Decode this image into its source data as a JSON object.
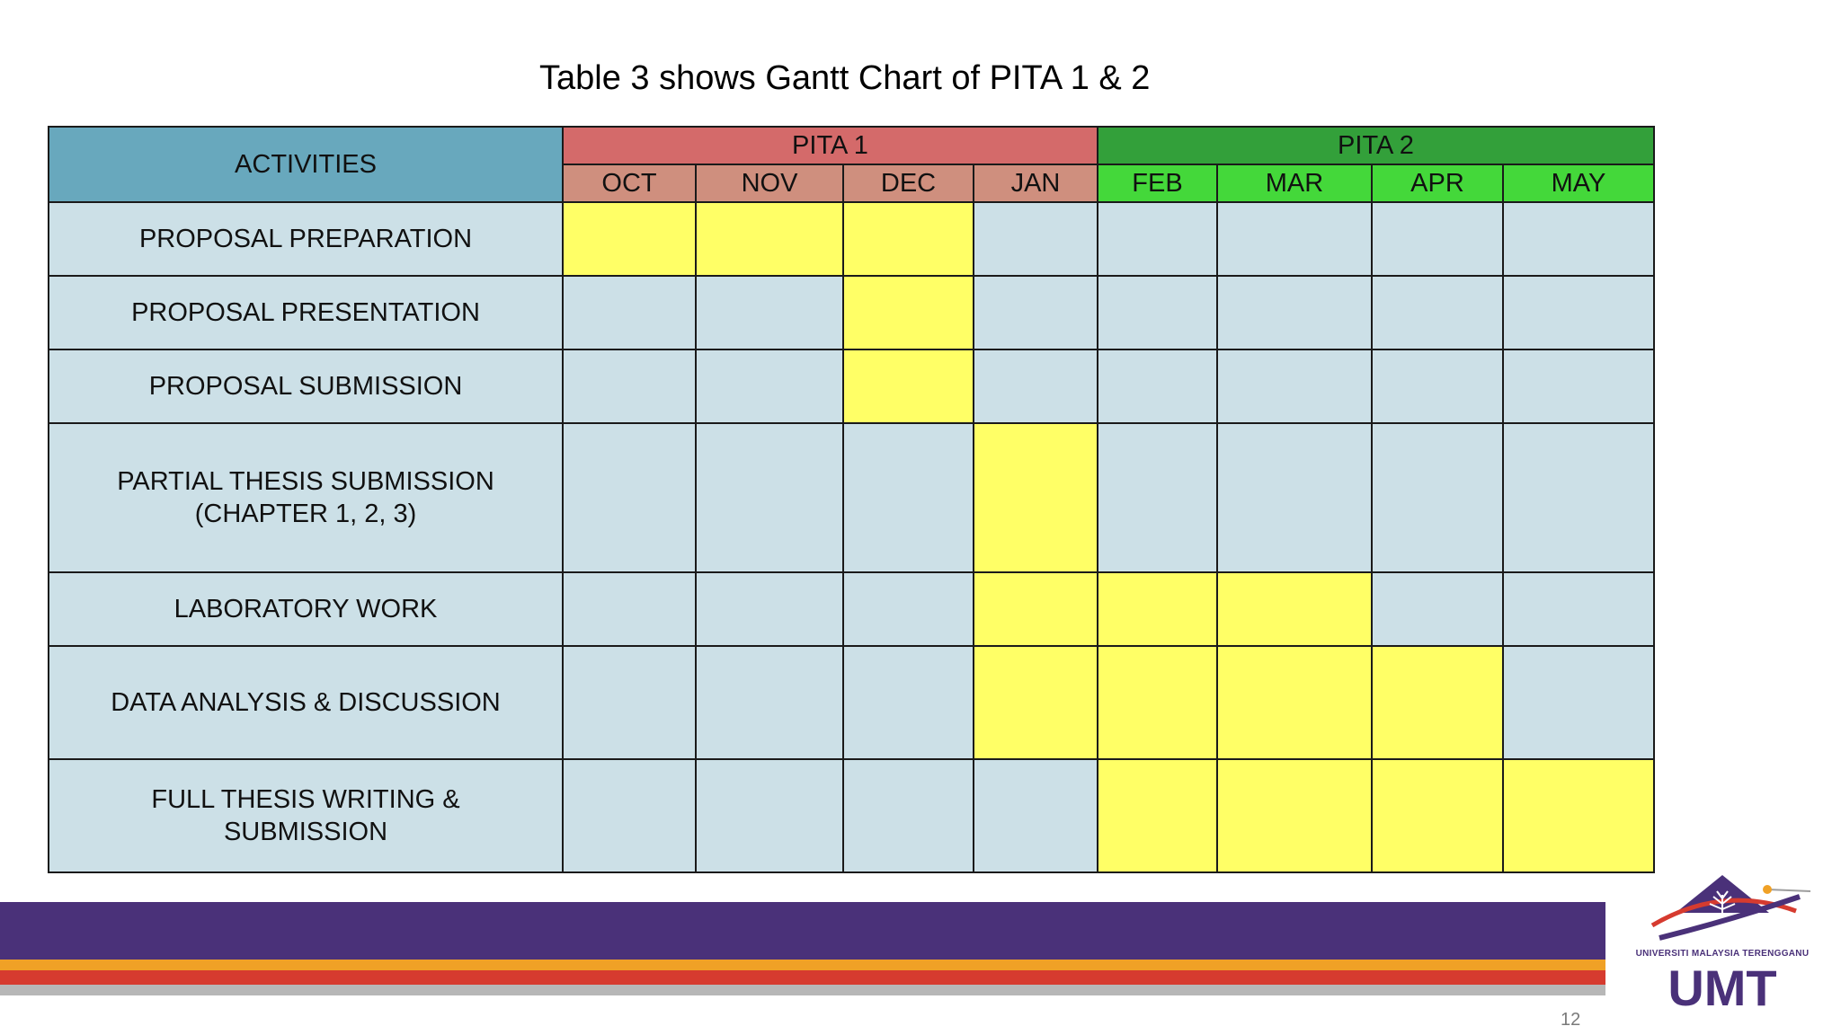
{
  "title": "Table 3 shows Gantt Chart of PITA 1 & 2",
  "table": {
    "activities_header": "ACTIVITIES",
    "phases": [
      {
        "label": "PITA 1",
        "months": [
          "OCT",
          "NOV",
          "DEC",
          "JAN"
        ]
      },
      {
        "label": "PITA 2",
        "months": [
          "FEB",
          "MAR",
          "APR",
          "MAY"
        ]
      }
    ],
    "rows": [
      {
        "lines": [
          "PROPOSAL PREPARATION"
        ],
        "active": [
          1,
          1,
          1,
          0,
          0,
          0,
          0,
          0
        ]
      },
      {
        "lines": [
          "PROPOSAL PRESENTATION"
        ],
        "active": [
          0,
          0,
          1,
          0,
          0,
          0,
          0,
          0
        ]
      },
      {
        "lines": [
          "PROPOSAL SUBMISSION"
        ],
        "active": [
          0,
          0,
          1,
          0,
          0,
          0,
          0,
          0
        ]
      },
      {
        "lines": [
          "PARTIAL THESIS SUBMISSION",
          "(CHAPTER 1, 2, 3)"
        ],
        "active": [
          0,
          0,
          0,
          1,
          0,
          0,
          0,
          0
        ]
      },
      {
        "lines": [
          "LABORATORY WORK"
        ],
        "active": [
          0,
          0,
          0,
          1,
          1,
          1,
          0,
          0
        ]
      },
      {
        "lines": [
          "DATA ANALYSIS & DISCUSSION"
        ],
        "active": [
          0,
          0,
          0,
          1,
          1,
          1,
          1,
          0
        ]
      },
      {
        "lines": [
          "FULL THESIS WRITING &",
          "SUBMISSION"
        ],
        "active": [
          0,
          0,
          0,
          0,
          1,
          1,
          1,
          1
        ]
      }
    ]
  },
  "colors": {
    "activities_header": "#68a8bd",
    "pita1_header": "#d46a6a",
    "pita2_header": "#33a03a",
    "pita1_months": "#cf8f7e",
    "pita2_months": "#44d83a",
    "cell_empty": "#cce0e7",
    "cell_active": "#ffff66",
    "brand_purple": "#4a3179"
  },
  "footer": {
    "page_number": "12"
  },
  "logo": {
    "subtitle": "UNIVERSITI MALAYSIA TERENGGANU",
    "abbr": "UMT",
    "icon": "umt-logo-icon"
  }
}
